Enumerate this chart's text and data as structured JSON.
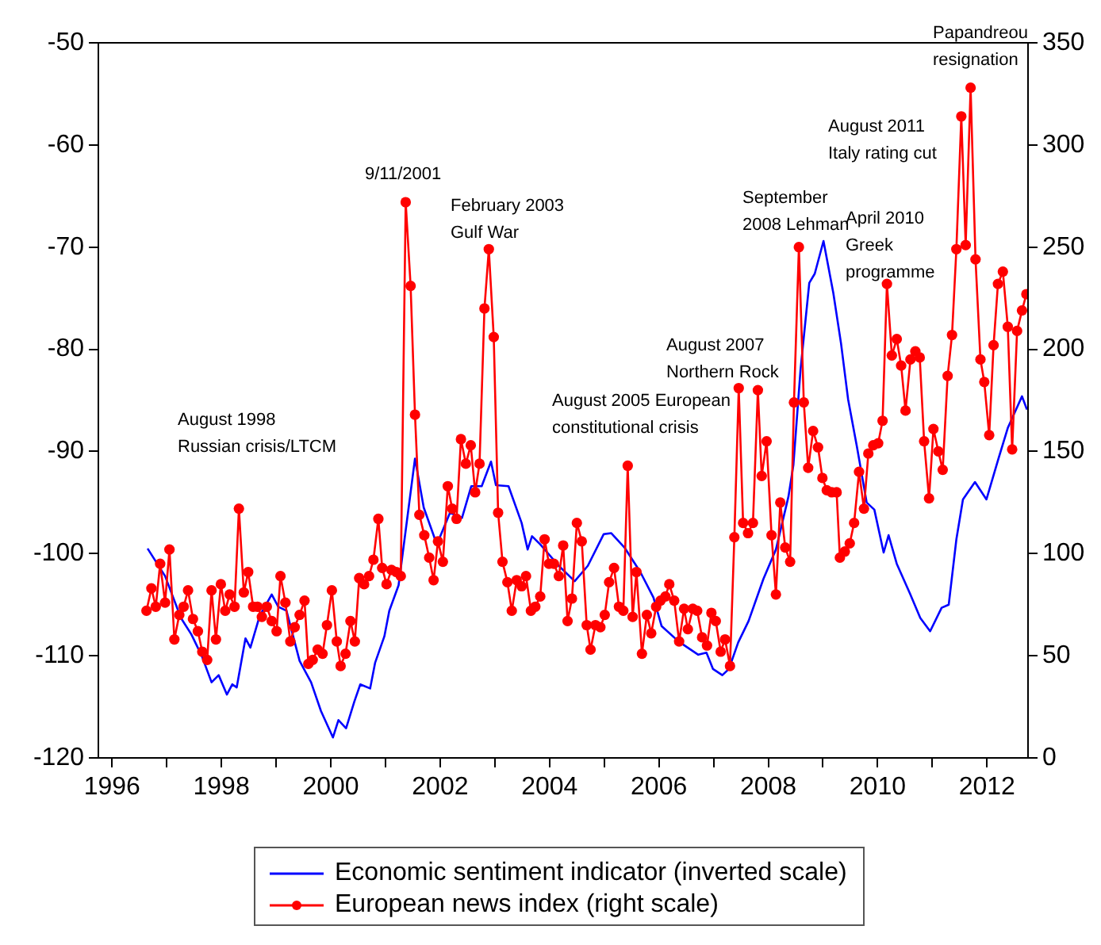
{
  "chart_data": {
    "type": "line",
    "legend": "bottom",
    "xlim": [
      1995.75,
      2012.75
    ],
    "xticks": [
      1996,
      {
        "value": 1997,
        "label": null
      },
      1998,
      {
        "value": 1999,
        "label": null
      },
      2000,
      {
        "value": 2001,
        "label": null
      },
      2002,
      {
        "value": 2003,
        "label": null
      },
      2004,
      {
        "value": 2005,
        "label": null
      },
      2006,
      {
        "value": 2007,
        "label": null
      },
      2008,
      {
        "value": 2009,
        "label": null
      },
      2010,
      {
        "value": 2011,
        "label": null
      },
      2012
    ],
    "ylim": [
      -120,
      -50
    ],
    "yticks": [
      -120,
      -110,
      -100,
      -90,
      -80,
      -70,
      -60,
      -50
    ],
    "y2lim": [
      0,
      350
    ],
    "y2ticks": [
      0,
      50,
      100,
      150,
      200,
      250,
      300,
      350
    ],
    "series": [
      {
        "name": "Economic sentiment indicator (inverted scale)",
        "color": "#0000ff",
        "marker": "none",
        "axis": "y",
        "x": [
          1996.65,
          1996.97,
          1997.26,
          1997.45,
          1997.64,
          1997.82,
          1997.95,
          1998.1,
          1998.2,
          1998.28,
          1998.44,
          1998.53,
          1998.7,
          1998.92,
          1999.04,
          1999.19,
          1999.43,
          1999.64,
          1999.82,
          2000.04,
          2000.14,
          2000.28,
          2000.43,
          2000.54,
          2000.72,
          2000.81,
          2000.98,
          2001.07,
          2001.24,
          2001.54,
          2001.7,
          2001.94,
          2002.18,
          2002.4,
          2002.57,
          2002.76,
          2002.93,
          2003.02,
          2003.25,
          2003.49,
          2003.6,
          2003.68,
          2003.83,
          2004.17,
          2004.46,
          2004.7,
          2004.99,
          2005.13,
          2005.37,
          2005.66,
          2005.9,
          2006.05,
          2006.36,
          2006.58,
          2006.72,
          2006.87,
          2006.99,
          2007.16,
          2007.28,
          2007.45,
          2007.64,
          2007.91,
          2008.14,
          2008.37,
          2008.46,
          2008.59,
          2008.75,
          2008.85,
          2009.01,
          2009.19,
          2009.33,
          2009.46,
          2009.62,
          2009.8,
          2009.94,
          2010.11,
          2010.2,
          2010.35,
          2010.59,
          2010.78,
          2010.96,
          2011.17,
          2011.3,
          2011.44,
          2011.56,
          2011.78,
          2011.99,
          2012.21,
          2012.38,
          2012.64,
          2012.73
        ],
        "values": [
          -99.5,
          -102.2,
          -106.3,
          -107.9,
          -110,
          -112.6,
          -111.9,
          -113.8,
          -112.8,
          -113.1,
          -108.3,
          -109.2,
          -106.1,
          -104,
          -105.2,
          -105.6,
          -110.5,
          -112.6,
          -115.4,
          -118,
          -116.3,
          -117.1,
          -114.5,
          -112.8,
          -113.2,
          -110.7,
          -108.1,
          -105.6,
          -103.1,
          -90.7,
          -95.5,
          -99.1,
          -96,
          -96.5,
          -93.4,
          -93.4,
          -91,
          -93.3,
          -93.4,
          -97,
          -99.6,
          -98.3,
          -99.1,
          -101.2,
          -102.7,
          -101.2,
          -98.1,
          -98,
          -99.4,
          -101.8,
          -104.3,
          -107.1,
          -108.6,
          -109.4,
          -109.9,
          -109.7,
          -111.3,
          -111.9,
          -111.3,
          -108.7,
          -106.6,
          -102.5,
          -99.6,
          -94.4,
          -91.3,
          -82,
          -73.5,
          -72.6,
          -69.4,
          -74.5,
          -79.4,
          -84.9,
          -89.5,
          -95,
          -95.7,
          -99.9,
          -98.2,
          -101,
          -103.9,
          -106.3,
          -107.6,
          -105.3,
          -105,
          -98.6,
          -94.7,
          -93,
          -94.7,
          -90.7,
          -87.7,
          -84.6,
          -85.9
        ]
      },
      {
        "name": "European news index (right scale)",
        "color": "#ff0000",
        "marker": "circle",
        "axis": "y2",
        "x": [
          1996.63,
          1996.72,
          1996.8,
          1996.88,
          1996.97,
          1997.05,
          1997.14,
          1997.23,
          1997.31,
          1997.39,
          1997.48,
          1997.57,
          1997.65,
          1997.74,
          1997.82,
          1997.9,
          1997.99,
          1998.07,
          1998.15,
          1998.24,
          1998.32,
          1998.41,
          1998.49,
          1998.58,
          1998.66,
          1998.74,
          1998.83,
          1998.92,
          1999.01,
          1999.08,
          1999.17,
          1999.26,
          1999.34,
          1999.43,
          1999.52,
          1999.59,
          1999.67,
          1999.76,
          1999.85,
          1999.93,
          2000.02,
          2000.11,
          2000.18,
          2000.27,
          2000.36,
          2000.44,
          2000.52,
          2000.61,
          2000.7,
          2000.78,
          2000.87,
          2000.94,
          2001.02,
          2001.11,
          2001.2,
          2001.28,
          2001.37,
          2001.46,
          2001.54,
          2001.62,
          2001.71,
          2001.8,
          2001.88,
          2001.96,
          2002.05,
          2002.14,
          2002.22,
          2002.3,
          2002.38,
          2002.47,
          2002.56,
          2002.64,
          2002.72,
          2002.81,
          2002.89,
          2002.98,
          2003.06,
          2003.14,
          2003.23,
          2003.31,
          2003.4,
          2003.49,
          2003.57,
          2003.66,
          2003.74,
          2003.83,
          2003.91,
          2003.99,
          2004.08,
          2004.17,
          2004.25,
          2004.33,
          2004.41,
          2004.5,
          2004.59,
          2004.68,
          2004.75,
          2004.84,
          2004.93,
          2005.01,
          2005.09,
          2005.18,
          2005.27,
          2005.35,
          2005.43,
          2005.52,
          2005.59,
          2005.69,
          2005.78,
          2005.86,
          2005.95,
          2006.03,
          2006.12,
          2006.19,
          2006.28,
          2006.37,
          2006.46,
          2006.53,
          2006.62,
          2006.7,
          2006.79,
          2006.88,
          2006.96,
          2007.04,
          2007.13,
          2007.21,
          2007.3,
          2007.38,
          2007.46,
          2007.54,
          2007.63,
          2007.72,
          2007.81,
          2007.88,
          2007.97,
          2008.06,
          2008.14,
          2008.22,
          2008.31,
          2008.4,
          2008.47,
          2008.56,
          2008.65,
          2008.73,
          2008.82,
          2008.91,
          2008.99,
          2009.07,
          2009.16,
          2009.25,
          2009.31,
          2009.4,
          2009.49,
          2009.57,
          2009.66,
          2009.75,
          2009.83,
          2009.92,
          2010.01,
          2010.09,
          2010.17,
          2010.26,
          2010.35,
          2010.43,
          2010.51,
          2010.6,
          2010.69,
          2010.77,
          2010.85,
          2010.94,
          2011.02,
          2011.11,
          2011.19,
          2011.28,
          2011.36,
          2011.44,
          2011.53,
          2011.61,
          2011.7,
          2011.79,
          2011.88,
          2011.95,
          2012.04,
          2012.12,
          2012.2,
          2012.29,
          2012.38,
          2012.46,
          2012.55,
          2012.64,
          2012.72
        ],
        "values": [
          72,
          83,
          74,
          95,
          76,
          102,
          58,
          70,
          74,
          82,
          68,
          62,
          52,
          48,
          82,
          58,
          85,
          72,
          80,
          74,
          122,
          81,
          91,
          74,
          74,
          69,
          74,
          67,
          62,
          89,
          76,
          57,
          64,
          70,
          77,
          46,
          48,
          53,
          51,
          65,
          82,
          57,
          45,
          51,
          67,
          57,
          88,
          85,
          89,
          97,
          117,
          93,
          85,
          92,
          91,
          89,
          272,
          231,
          168,
          119,
          109,
          98,
          87,
          106,
          96,
          133,
          122,
          117,
          156,
          144,
          153,
          130,
          144,
          220,
          249,
          206,
          120,
          96,
          86,
          72,
          87,
          84,
          89,
          72,
          74,
          79,
          107,
          95,
          95,
          89,
          104,
          67,
          78,
          115,
          106,
          65,
          53,
          65,
          64,
          70,
          86,
          93,
          74,
          72,
          143,
          69,
          91,
          51,
          70,
          61,
          74,
          77,
          79,
          85,
          77,
          57,
          73,
          63,
          73,
          72,
          59,
          55,
          71,
          67,
          52,
          58,
          45,
          108,
          181,
          115,
          110,
          115,
          180,
          138,
          155,
          109,
          80,
          125,
          103,
          96,
          174,
          250,
          174,
          142,
          160,
          152,
          137,
          131,
          130,
          130,
          98,
          101,
          105,
          115,
          140,
          122,
          149,
          153,
          154,
          165,
          232,
          197,
          205,
          192,
          170,
          195,
          199,
          196,
          155,
          127,
          161,
          150,
          141,
          187,
          207,
          249,
          314,
          251,
          328,
          244,
          195,
          184,
          158,
          202,
          232,
          238,
          211,
          151,
          209,
          219,
          227
        ]
      }
    ],
    "annotations": [
      "August 1998\nRussian crisis/LTCM",
      "9/11/2001",
      "February 2003\nGulf War",
      "August 2005 European\nconstitutional crisis",
      "August 2007\nNorthern Rock",
      "September\n2008 Lehman",
      "April 2010\nGreek\nprogramme",
      "August 2011\nItaly rating cut",
      "Papandreou\nresignation"
    ]
  }
}
